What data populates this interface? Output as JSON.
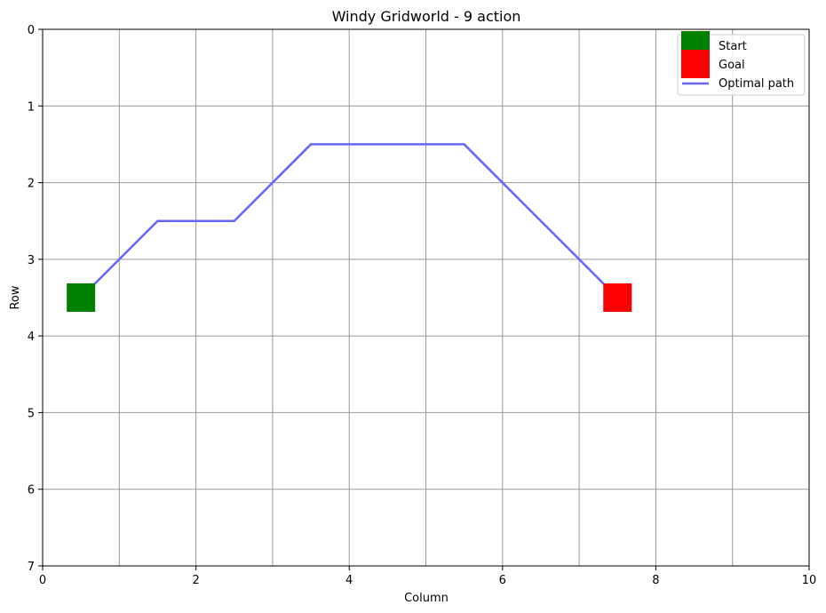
{
  "chart_data": {
    "type": "line",
    "title": "Windy Gridworld - 9 action",
    "xlabel": "Column",
    "ylabel": "Row",
    "xlim": [
      0,
      10
    ],
    "ylim": [
      7,
      0
    ],
    "y_inverted": true,
    "xticks": [
      0,
      2,
      4,
      6,
      8,
      10
    ],
    "yticks": [
      0,
      1,
      2,
      3,
      4,
      5,
      6,
      7
    ],
    "grid": true,
    "grid_lines_x": [
      1,
      2,
      3,
      4,
      5,
      6,
      7,
      8,
      9
    ],
    "grid_lines_y": [
      1,
      2,
      3,
      4,
      5,
      6
    ],
    "legend_position": "top-right",
    "markers": [
      {
        "name": "Start",
        "x": 0.5,
        "y": 3.5,
        "color": "#008000"
      },
      {
        "name": "Goal",
        "x": 7.5,
        "y": 3.5,
        "color": "#ff0000"
      }
    ],
    "series": [
      {
        "name": "Optimal path",
        "color": "#6666ff",
        "x": [
          0.5,
          1.5,
          2.5,
          3.5,
          4.5,
          5.5,
          6.5,
          7.5
        ],
        "y": [
          3.5,
          2.5,
          2.5,
          1.5,
          1.5,
          1.5,
          2.5,
          3.5
        ]
      }
    ]
  }
}
